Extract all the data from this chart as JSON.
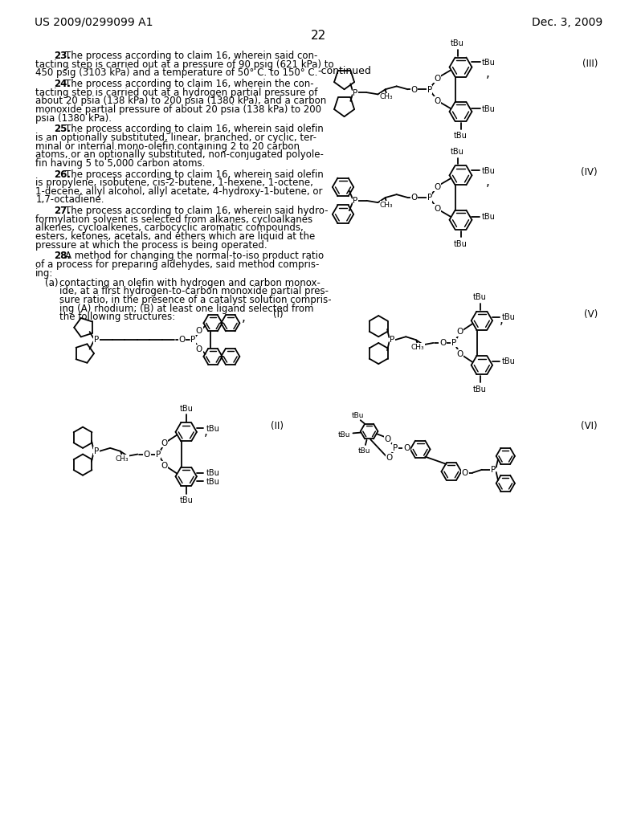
{
  "background_color": "#ffffff",
  "header_left": "US 2009/0299099 A1",
  "header_right": "Dec. 3, 2009",
  "page_number": "22",
  "continued_label": "-continued",
  "para23_num": "23",
  "para23": "The process according to claim 16, wherein said con-\ntacting step is carried out at a pressure of 90 psig (621 kPa) to\n450 psig (3103 kPa) and a temperature of 50° C. to 150° C.",
  "para24_num": "24",
  "para24": "The process according to claim 16, wherein the con-\ntacting step is carried out at a hydrogen partial pressure of\nabout 20 psia (138 kPa) to 200 psia (1380 kPa), and a carbon\nmonoxide partial pressure of about 20 psia (138 kPa) to 200\npsia (1380 kPa).",
  "para25_num": "25",
  "para25": "The process according to claim 16, wherein said olefin\nis an optionally substituted, linear, branched, or cyclic, ter-\nminal or internal mono-olefin containing 2 to 20 carbon\natoms, or an optionally substituted, non-conjugated polyole-\nfin having 5 to 5,000 carbon atoms.",
  "para26_num": "26",
  "para26": "The process according to claim 16, wherein said olefin\nis propylene, isobutene, cis-2-butene, 1-hexene, 1-octene,\n1-decene, allyl alcohol, allyl acetate, 4-hydroxy-1-butene, or\n1,7-octadiene.",
  "para27_num": "27",
  "para27": "The process according to claim 16, wherein said hydro-\nformylation solvent is selected from alkanes, cycloalkanes\nalkenes, cycloalkenes, carbocyclic aromatic compounds,\nesters, ketones, acetals, and ethers which are liquid at the\npressure at which the process is being operated.",
  "para28_num": "28",
  "para28": "A method for changing the normal-to-iso product ratio\nof a process for preparing aldehydes, said method compris-\ning:",
  "para28a": "contacting an olefin with hydrogen and carbon monox-\nide, at a first hydrogen-to-carbon monoxide partial pres-\nsure ratio, in the presence of a catalyst solution compris-\ning (A) rhodium; (B) at least one ligand selected from\nthe following structures:"
}
